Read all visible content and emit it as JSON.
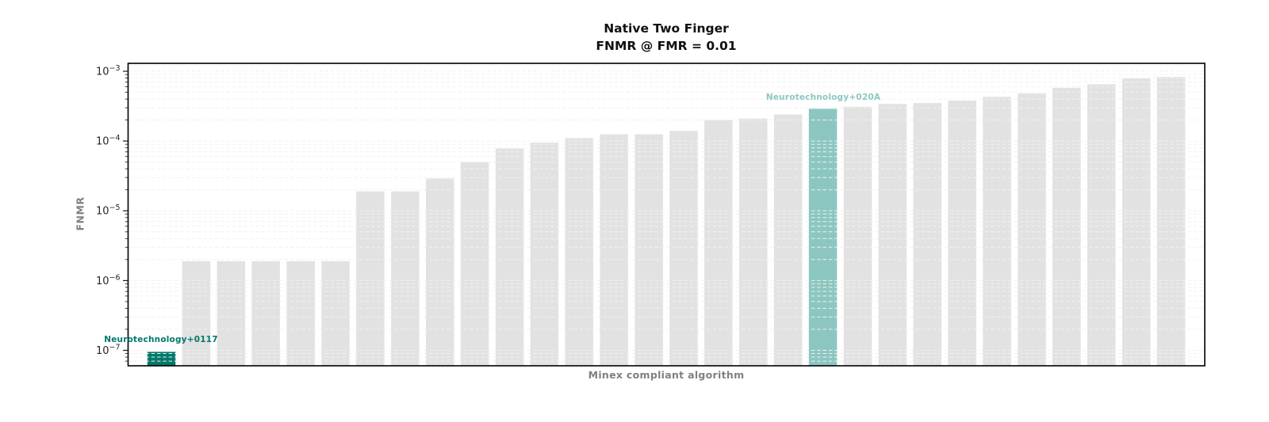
{
  "chart_data": {
    "type": "bar",
    "title": "Native Two Finger",
    "subtitle": "FNMR @ FMR = 0.01",
    "xlabel": "Minex compliant algorithm",
    "ylabel": "FNMR",
    "y_scale": "log",
    "ylim": [
      6e-08,
      0.0013
    ],
    "grid": {
      "show": true,
      "axis": "y",
      "style": "dashed",
      "minor_ticks": true
    },
    "legend": "none",
    "x_tick_labels_visible": false,
    "y_ticks": [
      {
        "value": 0.001,
        "base": "10",
        "exp": "−3"
      },
      {
        "value": 0.0001,
        "base": "10",
        "exp": "−4"
      },
      {
        "value": 1e-05,
        "base": "10",
        "exp": "−5"
      },
      {
        "value": 1e-06,
        "base": "10",
        "exp": "−6"
      },
      {
        "value": 1e-07,
        "base": "10",
        "exp": "−7"
      }
    ],
    "values": [
      9.5e-08,
      1.9e-06,
      1.9e-06,
      1.9e-06,
      1.9e-06,
      1.9e-06,
      1.9e-05,
      1.9e-05,
      2.9e-05,
      5e-05,
      7.8e-05,
      9.5e-05,
      0.00011,
      0.000125,
      0.000125,
      0.00014,
      0.0002,
      0.00021,
      0.00024,
      0.00029,
      0.00031,
      0.00034,
      0.00035,
      0.00038,
      0.00043,
      0.00048,
      0.00058,
      0.00065,
      0.00079,
      0.00083
    ],
    "highlights": [
      {
        "index": 0,
        "label": "Neurotechnology+0117",
        "color": "#00796b"
      },
      {
        "index": 19,
        "label": "Neurotechnology+020A",
        "color": "#8bc7c0"
      }
    ],
    "colors": {
      "bar_default": "#e2e2e2",
      "grid_line": "#f1f1f1",
      "frame": "#000000",
      "tick_text": "#262626",
      "axis_label_text": "#808080"
    }
  }
}
